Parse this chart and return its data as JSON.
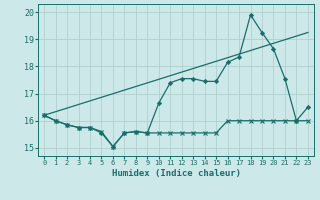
{
  "xlabel": "Humidex (Indice chaleur)",
  "xlim": [
    -0.5,
    23.5
  ],
  "ylim": [
    14.7,
    20.3
  ],
  "yticks": [
    15,
    16,
    17,
    18,
    19,
    20
  ],
  "xticks": [
    0,
    1,
    2,
    3,
    4,
    5,
    6,
    7,
    8,
    9,
    10,
    11,
    12,
    13,
    14,
    15,
    16,
    17,
    18,
    19,
    20,
    21,
    22,
    23
  ],
  "bg_color": "#cce8e8",
  "grid_color": "#aacccc",
  "line_color": "#1a6e6a",
  "series1_x": [
    0,
    1,
    2,
    3,
    4,
    5,
    6,
    7,
    8,
    9,
    10,
    11,
    12,
    13,
    14,
    15,
    16,
    17,
    18,
    19,
    20,
    21,
    22,
    23
  ],
  "series1_y": [
    16.2,
    16.0,
    15.85,
    15.75,
    15.75,
    15.6,
    15.05,
    15.55,
    15.6,
    15.55,
    15.55,
    15.55,
    15.55,
    15.55,
    15.55,
    15.55,
    16.0,
    16.0,
    16.0,
    16.0,
    16.0,
    16.0,
    16.0,
    16.0
  ],
  "series2_x": [
    0,
    1,
    2,
    3,
    4,
    5,
    6,
    7,
    8,
    9,
    10,
    11,
    12,
    13,
    14,
    15,
    16,
    17,
    18,
    19,
    20,
    21,
    22,
    23
  ],
  "series2_y": [
    16.2,
    16.0,
    15.85,
    15.75,
    15.75,
    15.55,
    15.05,
    15.55,
    15.6,
    15.55,
    16.65,
    17.4,
    17.55,
    17.55,
    17.45,
    17.45,
    18.15,
    18.35,
    19.9,
    19.25,
    18.65,
    17.55,
    16.0,
    16.5
  ],
  "series3_x": [
    0,
    23
  ],
  "series3_y": [
    16.2,
    19.25
  ]
}
